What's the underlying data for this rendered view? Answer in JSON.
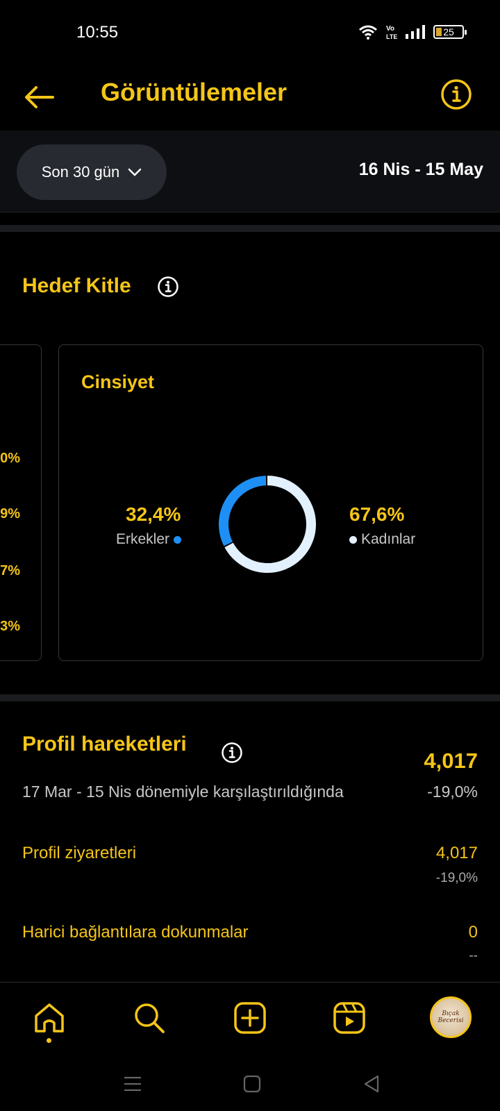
{
  "status_bar": {
    "time": "10:55",
    "battery": "25",
    "network": "Vo LTE"
  },
  "header": {
    "title": "Görüntülemeler"
  },
  "filter": {
    "period": "Son 30 gün",
    "date_range": "16 Nis - 15 May"
  },
  "audience": {
    "title": "Hedef Kitle",
    "peek_values": [
      "0%",
      "9%",
      "7%",
      "3%"
    ],
    "gender": {
      "title": "Cinsiyet",
      "men_pct": "32,4%",
      "men_label": "Erkekler",
      "women_pct": "67,6%",
      "women_label": "Kadınlar",
      "men_color": "#1e90f5",
      "women_color": "#e3f1fe"
    }
  },
  "chart_data": {
    "type": "pie",
    "categories": [
      "Erkekler",
      "Kadınlar"
    ],
    "values": [
      32.4,
      67.6
    ]
  },
  "profile": {
    "title": "Profil hareketleri",
    "total": "4,017",
    "compare_text": "17 Mar - 15 Nis dönemiyle karşılaştırıldığında",
    "compare_value": "-19,0%",
    "metrics": [
      {
        "label": "Profil ziyaretleri",
        "value": "4,017",
        "change": "-19,0%"
      },
      {
        "label": "Harici bağlantılara dokunmalar",
        "value": "0",
        "change": "--"
      }
    ]
  },
  "nav": {
    "items": [
      "home-icon",
      "search-icon",
      "add-icon",
      "reels-icon",
      "profile-avatar"
    ],
    "avatar_text": "Bıçak Becerisi"
  },
  "colors": {
    "accent": "#f5c518",
    "background": "#000000"
  }
}
